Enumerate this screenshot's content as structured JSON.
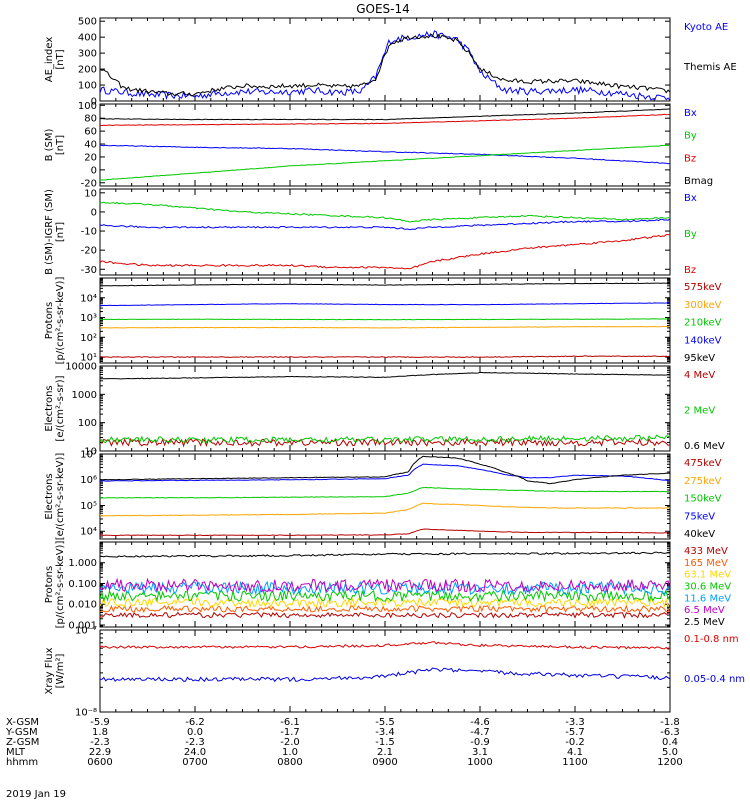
{
  "title": "GOES-14",
  "date_label": "2019 Jan 19",
  "footer": {
    "row_labels": [
      "X-GSM",
      "Y-GSM",
      "Z-GSM",
      "MLT",
      "hhmm"
    ],
    "columns": [
      [
        "-5.9",
        "1.8",
        "-2.3",
        "22.9",
        "0600"
      ],
      [
        "-6.2",
        "0.0",
        "-2.3",
        "24.0",
        "0700"
      ],
      [
        "-6.1",
        "-1.7",
        "-2.0",
        "1.0",
        "0800"
      ],
      [
        "-5.5",
        "-3.4",
        "-1.5",
        "2.1",
        "0900"
      ],
      [
        "-4.6",
        "-4.7",
        "-0.9",
        "3.1",
        "1000"
      ],
      [
        "-3.3",
        "-5.7",
        "-0.2",
        "4.1",
        "1100"
      ],
      [
        "-1.8",
        "-6.3",
        "0.4",
        "5.0",
        "1200"
      ]
    ]
  },
  "chart_data": [
    {
      "type": "line",
      "panel": "ae",
      "ylabel": [
        "AE_index",
        "[nT]"
      ],
      "yscale": "linear",
      "ylim": [
        0,
        520
      ],
      "yticks": [
        0,
        100,
        200,
        300,
        400,
        500
      ],
      "ytick_labels": [
        "0",
        "100",
        "200",
        "300",
        "400",
        "500"
      ],
      "x": [
        6.0,
        6.25,
        6.5,
        6.75,
        7.0,
        7.25,
        7.5,
        7.75,
        8.0,
        8.25,
        8.5,
        8.75,
        8.9,
        9.05,
        9.25,
        9.5,
        9.75,
        9.9,
        10.0,
        10.25,
        10.5,
        10.75,
        11.0,
        11.25,
        11.5,
        11.75,
        12.0
      ],
      "series": [
        {
          "name": "Kyoto AE",
          "color": "#0000ff",
          "noise": 22,
          "values": [
            70,
            55,
            40,
            35,
            30,
            50,
            60,
            55,
            60,
            65,
            55,
            60,
            150,
            380,
            400,
            420,
            390,
            300,
            180,
            70,
            60,
            65,
            70,
            60,
            45,
            30,
            20
          ]
        },
        {
          "name": "Themis AE",
          "color": "#000000",
          "noise": 14,
          "values": [
            210,
            80,
            60,
            45,
            45,
            75,
            95,
            90,
            95,
            100,
            90,
            95,
            140,
            360,
            400,
            410,
            380,
            290,
            200,
            130,
            120,
            125,
            125,
            110,
            90,
            80,
            60
          ]
        }
      ]
    },
    {
      "type": "line",
      "panel": "b_sm",
      "ylabel": [
        "B (SM)",
        "[nT]"
      ],
      "yscale": "linear",
      "ylim": [
        -25,
        102
      ],
      "yticks": [
        -20,
        0,
        20,
        40,
        60,
        80,
        100
      ],
      "ytick_labels": [
        "-20",
        "0",
        "20",
        "40",
        "60",
        "80",
        "100"
      ],
      "x": [
        6,
        7,
        8,
        9,
        10,
        11,
        12
      ],
      "series": [
        {
          "name": "Bx",
          "color": "#0000ff",
          "noise": 0.6,
          "values": [
            38,
            35,
            33,
            28,
            24,
            18,
            10
          ]
        },
        {
          "name": "By",
          "color": "#00c800",
          "noise": 0.4,
          "values": [
            -16,
            -5,
            6,
            14,
            22,
            30,
            38
          ]
        },
        {
          "name": "Bz",
          "color": "#dd0000",
          "noise": 0.4,
          "values": [
            69,
            70,
            71,
            72,
            76,
            80,
            86
          ]
        },
        {
          "name": "Bmag",
          "color": "#000000",
          "noise": 0.4,
          "values": [
            79,
            78,
            78,
            78,
            83,
            88,
            94
          ]
        }
      ]
    },
    {
      "type": "line",
      "panel": "b_minus_igrf",
      "ylabel": [
        "B (SM)-IGRF (SM)",
        "[nT]"
      ],
      "yscale": "linear",
      "ylim": [
        -33,
        12
      ],
      "yticks": [
        -30,
        -20,
        -10,
        0,
        10
      ],
      "ytick_labels": [
        "-30",
        "-20",
        "-10",
        "0",
        "10"
      ],
      "x": [
        6,
        6.5,
        7,
        7.5,
        8,
        8.5,
        9,
        9.25,
        9.5,
        10,
        10.5,
        11,
        11.5,
        12
      ],
      "series": [
        {
          "name": "Bx",
          "color": "#0000ff",
          "noise": 0.4,
          "values": [
            -7,
            -8,
            -8,
            -8,
            -8,
            -8,
            -8,
            -9,
            -8,
            -7,
            -6,
            -5,
            -5,
            -4
          ]
        },
        {
          "name": "By",
          "color": "#00c800",
          "noise": 0.4,
          "values": [
            5,
            4,
            2,
            0,
            -1,
            -2,
            -3,
            -5,
            -4,
            -3,
            -2,
            -3,
            -4,
            -3
          ]
        },
        {
          "name": "Bz",
          "color": "#dd0000",
          "noise": 0.5,
          "values": [
            -26,
            -28,
            -28,
            -28,
            -28,
            -29,
            -29,
            -30,
            -26,
            -22,
            -19,
            -17,
            -15,
            -12
          ]
        }
      ]
    },
    {
      "type": "line",
      "panel": "protons_diff",
      "ylabel": [
        "Protons",
        "[p/(cm²-s-sr-keV)]"
      ],
      "yscale": "log",
      "ylim": [
        5,
        100000
      ],
      "yticks": [
        10,
        100,
        1000,
        10000
      ],
      "ytick_labels": [
        "10¹",
        "10²",
        "10³",
        "10⁴"
      ],
      "x": [
        6,
        7,
        8,
        9,
        10,
        11,
        12
      ],
      "series": [
        {
          "name": "575keV",
          "color": "#b40000",
          "noise": 0.02,
          "values": [
            10,
            10,
            10,
            10,
            10,
            11,
            11
          ]
        },
        {
          "name": "300keV",
          "color": "#ffa500",
          "noise": 0.01,
          "values": [
            300,
            310,
            310,
            300,
            320,
            340,
            350
          ]
        },
        {
          "name": "210keV",
          "color": "#00c800",
          "noise": 0.01,
          "values": [
            800,
            820,
            800,
            780,
            800,
            820,
            850
          ]
        },
        {
          "name": "140keV",
          "color": "#0000ff",
          "noise": 0.01,
          "values": [
            4000,
            4500,
            5000,
            4500,
            4500,
            5000,
            5500
          ]
        },
        {
          "name": "95keV",
          "color": "#000000",
          "noise": 0.01,
          "values": [
            40000,
            45000,
            48000,
            44000,
            48000,
            52000,
            55000
          ]
        }
      ]
    },
    {
      "type": "line",
      "panel": "electrons_int",
      "ylabel": [
        "Electrons",
        "[e/(cm²-s-sr)]"
      ],
      "yscale": "log",
      "ylim": [
        10,
        10000
      ],
      "yticks": [
        10,
        100,
        1000,
        10000
      ],
      "ytick_labels": [
        "10",
        "100",
        "1000",
        "10000"
      ],
      "x": [
        6,
        7,
        8,
        9,
        9.5,
        10,
        10.5,
        11,
        11.5,
        12
      ],
      "series": [
        {
          "name": "4 MeV",
          "color": "#b40000",
          "noise": 0.12,
          "values": [
            20,
            20,
            20,
            20,
            20,
            20,
            20,
            20,
            20,
            20
          ]
        },
        {
          "name": "2 MeV",
          "color": "#00c800",
          "noise": 0.1,
          "values": [
            25,
            25,
            25,
            25,
            26,
            26,
            27,
            28,
            28,
            30
          ]
        },
        {
          "name": "0.6 MeV",
          "color": "#000000",
          "noise": 0.01,
          "values": [
            3500,
            3800,
            4200,
            4000,
            5000,
            5800,
            5600,
            5200,
            5000,
            4800
          ]
        }
      ]
    },
    {
      "type": "line",
      "panel": "electrons_diff",
      "ylabel": [
        "Electrons",
        "[e/(cm²-s-sr-keV)]"
      ],
      "yscale": "log",
      "ylim": [
        5000,
        10000000
      ],
      "yticks": [
        10000,
        100000,
        1000000,
        10000000
      ],
      "ytick_labels": [
        "10⁴",
        "10⁵",
        "10⁶",
        "10⁷"
      ],
      "x": [
        6,
        7,
        8,
        9,
        9.25,
        9.4,
        9.75,
        10,
        10.25,
        10.5,
        10.75,
        11,
        11.5,
        12
      ],
      "series": [
        {
          "name": "475keV",
          "color": "#b40000",
          "noise": 0.01,
          "values": [
            7000,
            7000,
            7000,
            7200,
            8000,
            12000,
            11000,
            10000,
            9500,
            9000,
            9000,
            9000,
            9000,
            8500
          ]
        },
        {
          "name": "275keV",
          "color": "#ffa500",
          "noise": 0.01,
          "values": [
            40000,
            42000,
            45000,
            50000,
            70000,
            120000,
            110000,
            100000,
            90000,
            85000,
            80000,
            80000,
            80000,
            80000
          ]
        },
        {
          "name": "150keV",
          "color": "#00c800",
          "noise": 0.01,
          "values": [
            200000,
            200000,
            210000,
            220000,
            300000,
            500000,
            450000,
            420000,
            400000,
            380000,
            360000,
            350000,
            350000,
            350000
          ]
        },
        {
          "name": "75keV",
          "color": "#0000ff",
          "noise": 0.01,
          "values": [
            900000,
            950000,
            1000000,
            1100000,
            1500000,
            4000000,
            3500000,
            2500000,
            1600000,
            1200000,
            1200000,
            1500000,
            1400000,
            900000
          ]
        },
        {
          "name": "40keV",
          "color": "#000000",
          "noise": 0.01,
          "values": [
            1000000,
            1100000,
            1200000,
            1300000,
            2000000,
            8000000,
            7000000,
            4000000,
            2000000,
            900000,
            700000,
            1000000,
            1500000,
            1800000
          ]
        }
      ]
    },
    {
      "type": "line",
      "panel": "protons_high",
      "ylabel": [
        "Protons",
        "[p/(cm²-s-sr-keV)]"
      ],
      "yscale": "log",
      "ylim": [
        0.0008,
        10
      ],
      "yticks": [
        0.001,
        0.01,
        0.1,
        1
      ],
      "ytick_labels": [
        "0.001",
        "0.010",
        "0.100",
        "1.000"
      ],
      "x": [
        6,
        7,
        8,
        9,
        10,
        11,
        12
      ],
      "series": [
        {
          "name": "433 MeV",
          "color": "#b40000",
          "noise": 0.12,
          "values": [
            0.003,
            0.003,
            0.003,
            0.003,
            0.003,
            0.003,
            0.003
          ]
        },
        {
          "name": "165 MeV",
          "color": "#ff5a00",
          "noise": 0.15,
          "values": [
            0.006,
            0.006,
            0.006,
            0.006,
            0.006,
            0.006,
            0.006
          ]
        },
        {
          "name": "63.1 MeV",
          "color": "#ffd700",
          "noise": 0.2,
          "values": [
            0.012,
            0.012,
            0.012,
            0.012,
            0.012,
            0.012,
            0.012
          ]
        },
        {
          "name": "30.6 MeV",
          "color": "#00c800",
          "noise": 0.25,
          "values": [
            0.025,
            0.025,
            0.025,
            0.025,
            0.025,
            0.025,
            0.025
          ]
        },
        {
          "name": "11.6 MeV",
          "color": "#00a0ff",
          "noise": 0.3,
          "values": [
            0.06,
            0.06,
            0.06,
            0.06,
            0.06,
            0.06,
            0.06
          ]
        },
        {
          "name": "6.5 MeV",
          "color": "#c000c0",
          "noise": 0.3,
          "values": [
            0.08,
            0.08,
            0.08,
            0.08,
            0.08,
            0.08,
            0.08
          ]
        },
        {
          "name": "2.5 MeV",
          "color": "#000000",
          "noise": 0.04,
          "values": [
            2.0,
            2.1,
            2.2,
            2.6,
            2.7,
            2.8,
            3.0
          ]
        }
      ]
    },
    {
      "type": "line",
      "panel": "xray",
      "ylabel": [
        "Xray Flux",
        "[W/m²]"
      ],
      "yscale": "log",
      "ylim": [
        1e-08,
        1e-07
      ],
      "yticks": [
        1e-08,
        1e-07
      ],
      "ytick_labels": [
        "10⁻⁸",
        "10⁻⁷"
      ],
      "x": [
        6,
        7,
        8,
        9,
        9.5,
        10,
        11,
        12
      ],
      "series": [
        {
          "name": "0.1-0.8 nm",
          "color": "#dd0000",
          "noise": 0.015,
          "values": [
            6.2e-08,
            6.2e-08,
            6.2e-08,
            6.5e-08,
            7e-08,
            6.5e-08,
            6.2e-08,
            6e-08
          ]
        },
        {
          "name": "0.05-0.4 nm",
          "color": "#0000dd",
          "noise": 0.025,
          "values": [
            2.5e-08,
            2.5e-08,
            2.5e-08,
            2.7e-08,
            3.3e-08,
            3.1e-08,
            2.8e-08,
            2.6e-08
          ]
        }
      ]
    }
  ]
}
